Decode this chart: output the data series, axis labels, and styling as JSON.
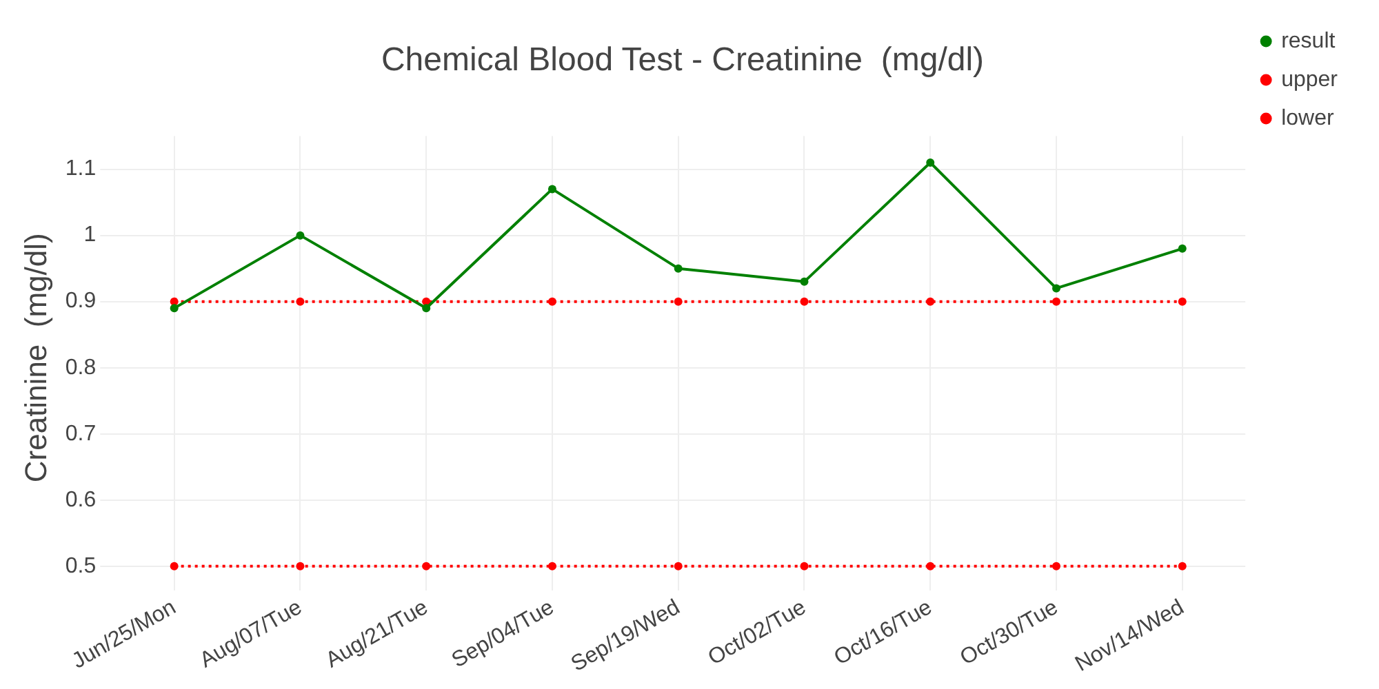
{
  "chart_data": {
    "type": "line",
    "title": "Chemical Blood Test - Creatinine  (mg/dl)",
    "ylabel": "Creatinine  (mg/dl)",
    "categories": [
      "Jun/25/Mon",
      "Aug/07/Tue",
      "Aug/21/Tue",
      "Sep/04/Tue",
      "Sep/19/Wed",
      "Oct/02/Tue",
      "Oct/16/Tue",
      "Oct/30/Tue",
      "Nov/14/Wed"
    ],
    "series": [
      {
        "name": "result",
        "color": "#008000",
        "line_style": "solid",
        "values": [
          0.89,
          1.0,
          0.89,
          1.07,
          0.95,
          0.93,
          1.11,
          0.92,
          0.98
        ]
      },
      {
        "name": "upper",
        "color": "#ff0000",
        "line_style": "dotted",
        "values": [
          0.9,
          0.9,
          0.9,
          0.9,
          0.9,
          0.9,
          0.9,
          0.9,
          0.9
        ]
      },
      {
        "name": "lower",
        "color": "#ff0000",
        "line_style": "dotted",
        "values": [
          0.5,
          0.5,
          0.5,
          0.5,
          0.5,
          0.5,
          0.5,
          0.5,
          0.5
        ]
      }
    ],
    "ylim": [
      0.48,
      1.15
    ],
    "yticks": [
      0.5,
      0.6,
      0.7,
      0.8,
      0.9,
      1,
      1.1
    ],
    "grid": true,
    "legend": "top right",
    "marker": "circle"
  }
}
